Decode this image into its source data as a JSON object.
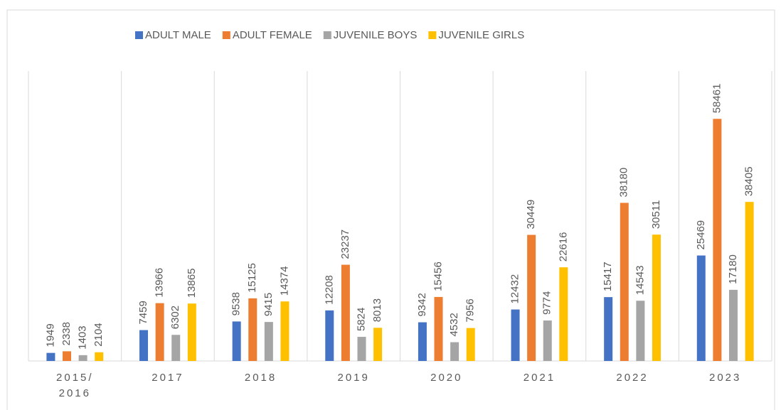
{
  "chart_data": {
    "type": "bar",
    "categories": [
      "2015/ 2016",
      "2017",
      "2018",
      "2019",
      "2020",
      "2021",
      "2022",
      "2023"
    ],
    "series": [
      {
        "name": "ADULT MALE",
        "color": "#4472c4",
        "values": [
          1949,
          7459,
          9538,
          12208,
          9342,
          12432,
          15417,
          25469
        ]
      },
      {
        "name": "ADULT FEMALE",
        "color": "#ed7d31",
        "values": [
          2338,
          13966,
          15125,
          23237,
          15456,
          30449,
          38180,
          58461
        ]
      },
      {
        "name": "JUVENILE BOYS",
        "color": "#a5a5a5",
        "values": [
          1403,
          6302,
          9415,
          5824,
          4532,
          9774,
          14543,
          17180
        ]
      },
      {
        "name": "JUVENILE GIRLS",
        "color": "#ffc000",
        "values": [
          2104,
          13865,
          14374,
          8013,
          7956,
          22616,
          30511,
          38405
        ]
      }
    ],
    "ylim": [
      0,
      70000
    ],
    "legend": "top"
  }
}
